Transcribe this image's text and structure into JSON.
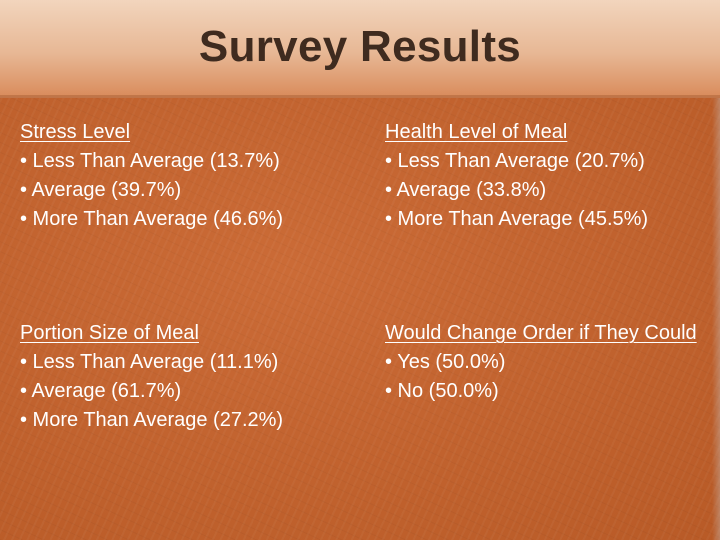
{
  "slide": {
    "title": "Survey Results",
    "colors": {
      "background": "#c8622a",
      "title_band": "#e7b794",
      "title_text": "#3f2b1f",
      "body_text": "#ffffff"
    },
    "sections": [
      {
        "heading": "Stress Level",
        "items": [
          "• Less Than Average (13.7%)",
          "• Average (39.7%)",
          "• More Than Average (46.6%)"
        ]
      },
      {
        "heading": "Health Level of Meal",
        "items": [
          "• Less Than Average (20.7%)",
          "• Average (33.8%)",
          "• More Than Average (45.5%)"
        ]
      },
      {
        "heading": "Portion Size of Meal",
        "items": [
          "• Less Than Average (11.1%)",
          "• Average (61.7%)",
          "• More Than Average (27.2%)"
        ]
      },
      {
        "heading": "Would Change Order if They Could",
        "items": [
          "• Yes (50.0%)",
          "• No (50.0%)"
        ]
      }
    ]
  }
}
